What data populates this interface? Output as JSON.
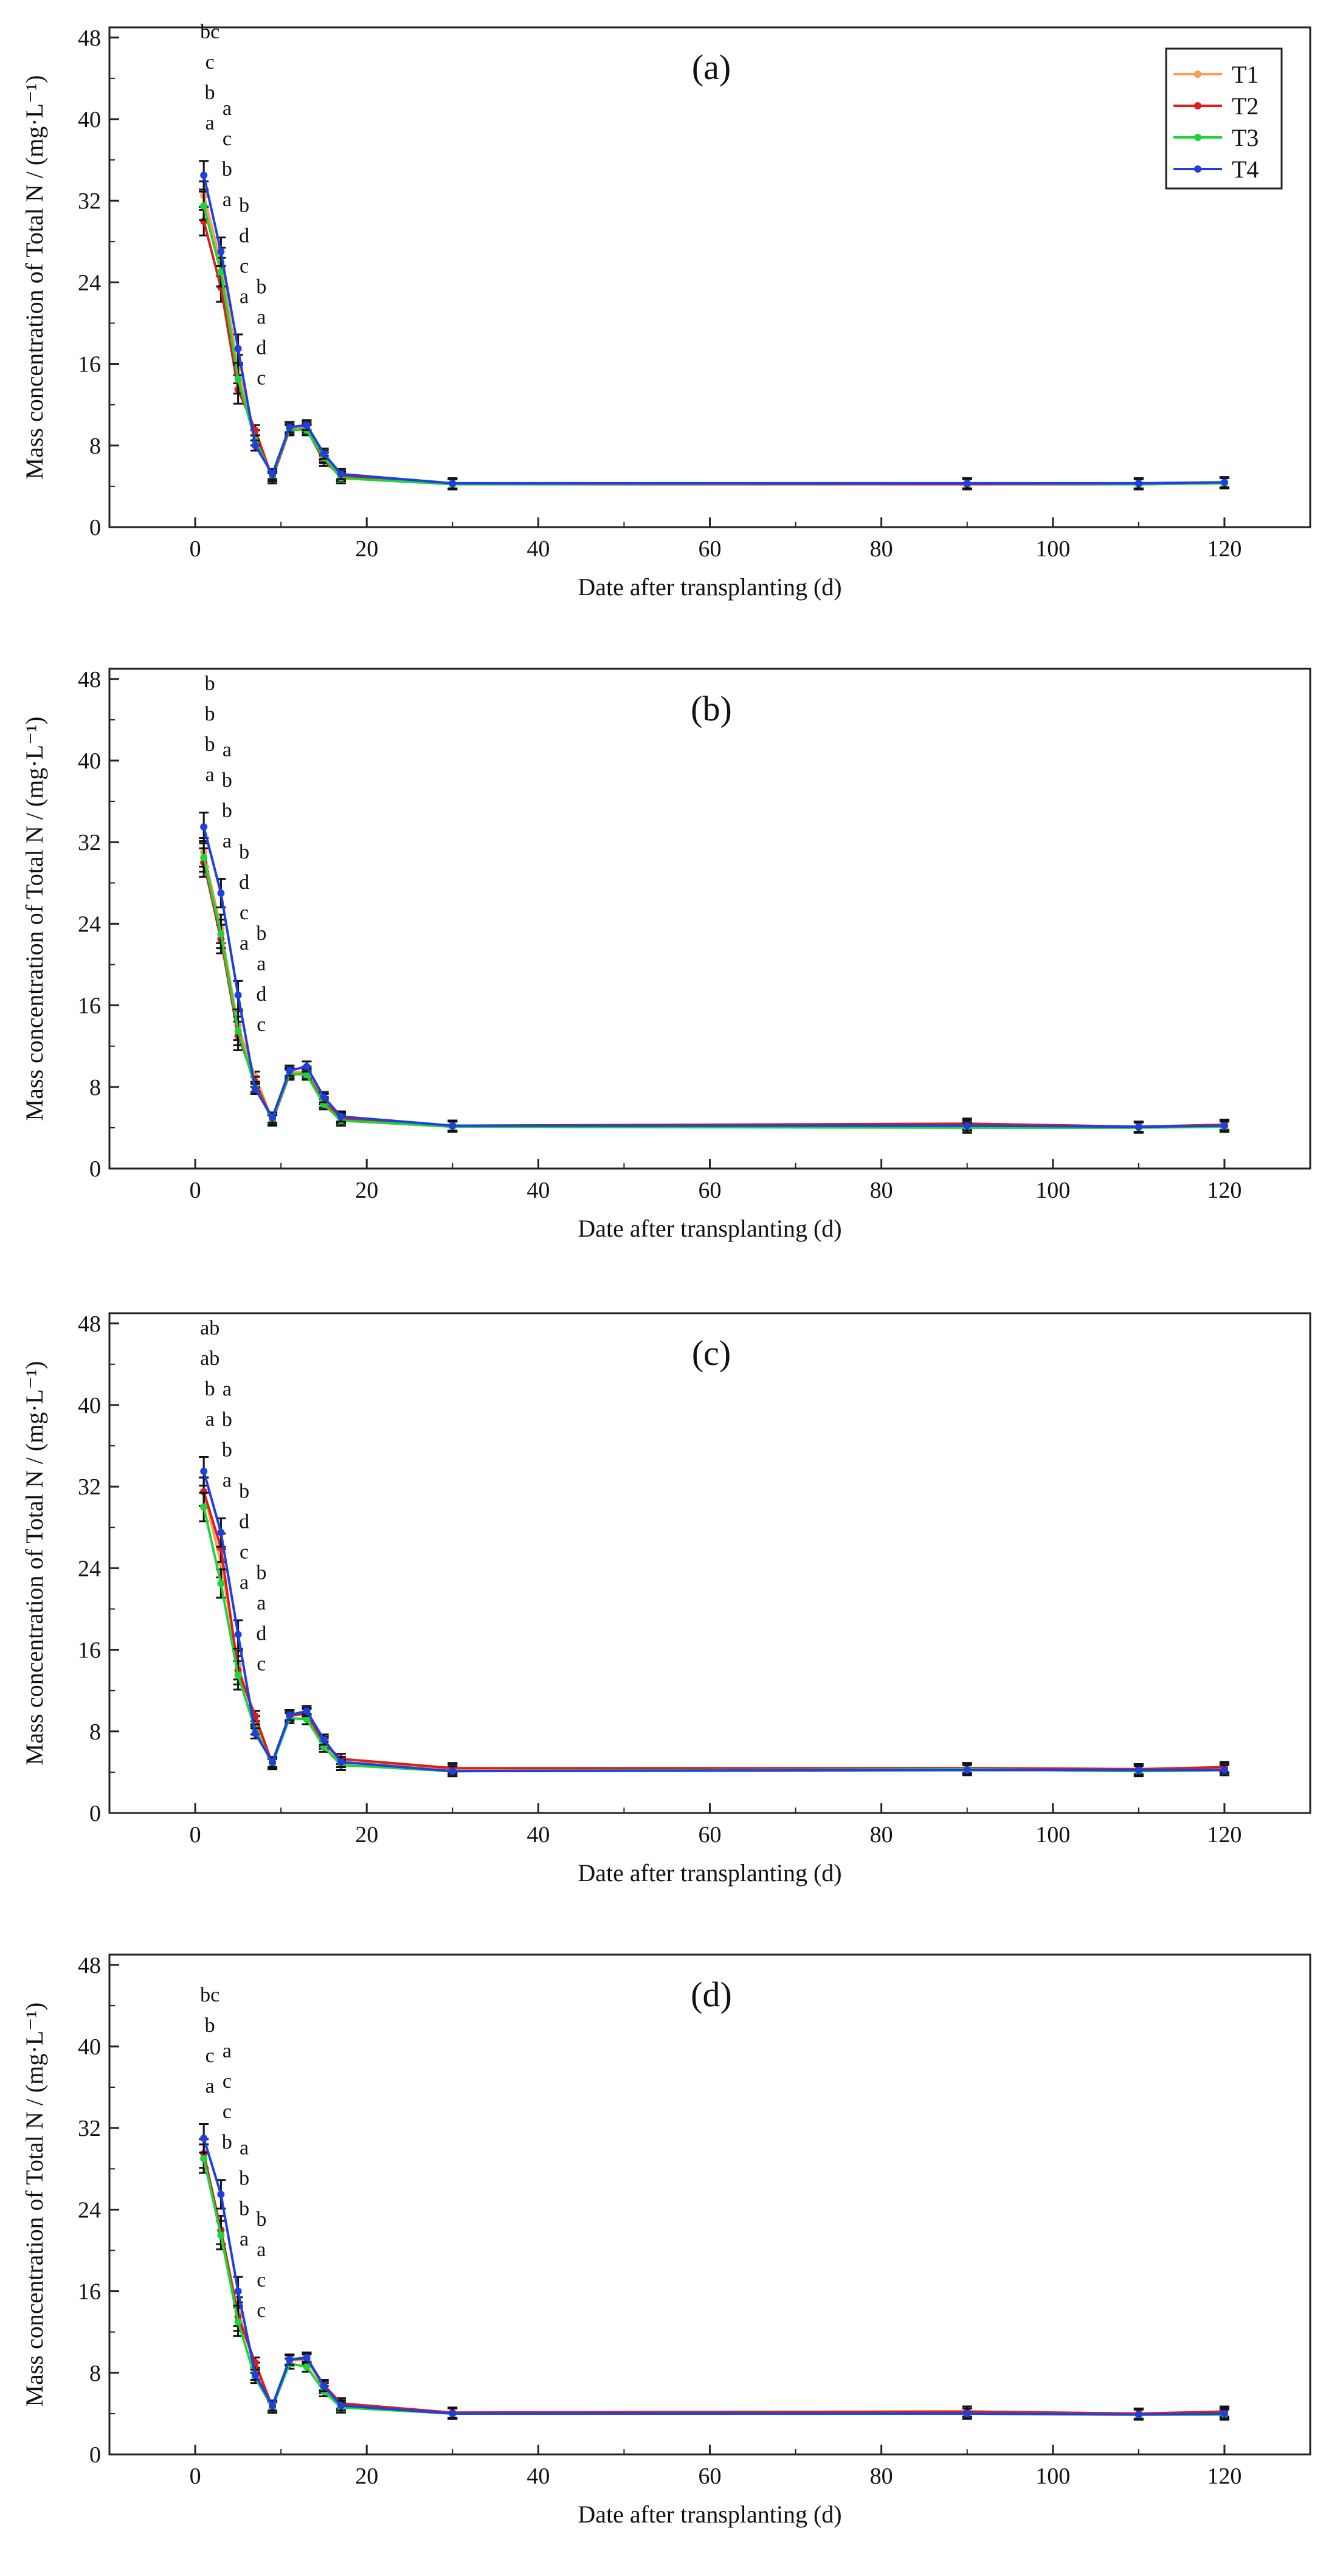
{
  "chart_data": [
    {
      "type": "line",
      "title": "(a)",
      "xlabel": "Date after transplanting (d)",
      "ylabel": "Mass concentration of Total N / (mg·L⁻¹)",
      "xlim": [
        -10,
        130
      ],
      "ylim": [
        0,
        49
      ],
      "xticks": [
        0,
        20,
        40,
        60,
        80,
        100,
        120
      ],
      "yticks": [
        0,
        8,
        16,
        24,
        32,
        40,
        48
      ],
      "legend": "top-right",
      "x": [
        1,
        3,
        5,
        7,
        9,
        11,
        13,
        15,
        17,
        30,
        90,
        110,
        120
      ],
      "series": [
        {
          "name": "T1",
          "color": "#ff9a52",
          "values": [
            32.5,
            26.0,
            15.5,
            9.0,
            4.8,
            9.8,
            9.8,
            7.0,
            5.0,
            4.2,
            4.2,
            4.2,
            4.4
          ]
        },
        {
          "name": "T2",
          "color": "#dd1c1c",
          "values": [
            30.0,
            23.5,
            13.5,
            9.5,
            4.8,
            9.5,
            9.6,
            6.5,
            5.0,
            4.2,
            4.2,
            4.2,
            4.3
          ]
        },
        {
          "name": "T3",
          "color": "#1ed43a",
          "values": [
            31.5,
            25.0,
            14.5,
            8.5,
            5.0,
            9.6,
            9.5,
            6.8,
            4.8,
            4.2,
            4.3,
            4.2,
            4.3
          ]
        },
        {
          "name": "T4",
          "color": "#1f3fe0",
          "values": [
            34.5,
            27.0,
            17.5,
            8.0,
            5.2,
            9.8,
            10.0,
            7.2,
            5.2,
            4.3,
            4.3,
            4.3,
            4.4
          ]
        }
      ],
      "significance": [
        {
          "x": 1,
          "letters": [
            "bc",
            "c",
            "b",
            "a"
          ]
        },
        {
          "x": 3,
          "letters": [
            "a",
            "c",
            "b",
            "a"
          ]
        },
        {
          "x": 5,
          "letters": [
            "b",
            "d",
            "c",
            "a"
          ]
        },
        {
          "x": 7,
          "letters": [
            "b",
            "a",
            "d",
            "c"
          ]
        }
      ]
    },
    {
      "type": "line",
      "title": "(b)",
      "xlabel": "Date after transplanting (d)",
      "ylabel": "Mass concentration of Total N / (mg·L⁻¹)",
      "xlim": [
        -10,
        130
      ],
      "ylim": [
        0,
        49
      ],
      "xticks": [
        0,
        20,
        40,
        60,
        80,
        100,
        120
      ],
      "yticks": [
        0,
        8,
        16,
        24,
        32,
        40,
        48
      ],
      "x": [
        1,
        3,
        5,
        7,
        9,
        11,
        13,
        15,
        17,
        30,
        90,
        110,
        120
      ],
      "series": [
        {
          "name": "T1",
          "color": "#ff9a52",
          "values": [
            31.0,
            23.5,
            14.0,
            9.0,
            4.8,
            9.4,
            9.5,
            6.8,
            5.0,
            4.2,
            4.3,
            4.1,
            4.2
          ]
        },
        {
          "name": "T2",
          "color": "#dd1c1c",
          "values": [
            30.0,
            22.5,
            13.0,
            8.5,
            4.7,
            9.2,
            9.3,
            6.5,
            4.9,
            4.2,
            4.4,
            4.1,
            4.3
          ]
        },
        {
          "name": "T3",
          "color": "#1ed43a",
          "values": [
            30.5,
            23.0,
            13.5,
            8.0,
            4.8,
            9.3,
            9.2,
            6.3,
            4.7,
            4.1,
            4.0,
            4.0,
            4.1
          ]
        },
        {
          "name": "T4",
          "color": "#1f3fe0",
          "values": [
            33.5,
            27.0,
            17.0,
            7.8,
            5.0,
            9.6,
            10.0,
            7.0,
            5.1,
            4.2,
            4.2,
            4.1,
            4.2
          ]
        }
      ],
      "significance": [
        {
          "x": 1,
          "letters": [
            "b",
            "b",
            "b",
            "a"
          ]
        },
        {
          "x": 3,
          "letters": [
            "a",
            "b",
            "b",
            "a"
          ]
        },
        {
          "x": 5,
          "letters": [
            "b",
            "d",
            "c",
            "a"
          ]
        },
        {
          "x": 7,
          "letters": [
            "b",
            "a",
            "d",
            "c"
          ]
        }
      ]
    },
    {
      "type": "line",
      "title": "(c)",
      "xlabel": "Date after transplanting (d)",
      "ylabel": "Mass concentration of Total N / (mg·L⁻¹)",
      "xlim": [
        -10,
        130
      ],
      "ylim": [
        0,
        49
      ],
      "xticks": [
        0,
        20,
        40,
        60,
        80,
        100,
        120
      ],
      "yticks": [
        0,
        8,
        16,
        24,
        32,
        40,
        48
      ],
      "x": [
        1,
        3,
        5,
        7,
        9,
        11,
        13,
        15,
        17,
        30,
        90,
        110,
        120
      ],
      "series": [
        {
          "name": "T1",
          "color": "#ff9a52",
          "values": [
            31.5,
            24.5,
            14.5,
            9.0,
            4.9,
            9.6,
            9.7,
            7.0,
            5.0,
            4.3,
            4.4,
            4.3,
            4.4
          ]
        },
        {
          "name": "T2",
          "color": "#dd1c1c",
          "values": [
            31.5,
            26.0,
            14.0,
            9.5,
            4.8,
            9.5,
            9.8,
            6.8,
            5.3,
            4.4,
            4.4,
            4.3,
            4.5
          ]
        },
        {
          "name": "T3",
          "color": "#1ed43a",
          "values": [
            30.0,
            22.5,
            13.5,
            8.2,
            4.8,
            9.3,
            9.2,
            6.5,
            4.7,
            4.1,
            4.3,
            4.1,
            4.2
          ]
        },
        {
          "name": "T4",
          "color": "#1f3fe0",
          "values": [
            33.5,
            27.5,
            17.5,
            7.8,
            5.0,
            9.6,
            10.0,
            7.2,
            5.0,
            4.1,
            4.2,
            4.2,
            4.2
          ]
        }
      ],
      "significance": [
        {
          "x": 1,
          "letters": [
            "ab",
            "ab",
            "b",
            "a"
          ]
        },
        {
          "x": 3,
          "letters": [
            "a",
            "b",
            "b",
            "a"
          ]
        },
        {
          "x": 5,
          "letters": [
            "b",
            "d",
            "c",
            "a"
          ]
        },
        {
          "x": 7,
          "letters": [
            "b",
            "a",
            "d",
            "c"
          ]
        }
      ]
    },
    {
      "type": "line",
      "title": "(d)",
      "xlabel": "Date after transplanting (d)",
      "ylabel": "Mass concentration of Total N / (mg·L⁻¹)",
      "xlim": [
        -10,
        130
      ],
      "ylim": [
        0,
        49
      ],
      "xticks": [
        0,
        20,
        40,
        60,
        80,
        100,
        120
      ],
      "yticks": [
        0,
        8,
        16,
        24,
        32,
        40,
        48
      ],
      "x": [
        1,
        3,
        5,
        7,
        9,
        11,
        13,
        15,
        17,
        30,
        90,
        110,
        120
      ],
      "series": [
        {
          "name": "T1",
          "color": "#ff9a52",
          "values": [
            29.0,
            22.0,
            14.0,
            8.5,
            4.6,
            9.2,
            9.3,
            6.5,
            5.0,
            4.0,
            4.2,
            4.0,
            4.1
          ]
        },
        {
          "name": "T2",
          "color": "#dd1c1c",
          "values": [
            29.5,
            22.0,
            13.5,
            9.0,
            4.6,
            9.3,
            9.4,
            6.8,
            5.0,
            4.1,
            4.2,
            4.0,
            4.2
          ]
        },
        {
          "name": "T3",
          "color": "#1ed43a",
          "values": [
            29.0,
            21.5,
            13.0,
            7.5,
            4.6,
            8.9,
            8.6,
            6.2,
            4.6,
            4.0,
            4.0,
            3.9,
            3.9
          ]
        },
        {
          "name": "T4",
          "color": "#1f3fe0",
          "values": [
            31.0,
            25.5,
            16.0,
            7.8,
            4.8,
            9.3,
            9.5,
            6.7,
            4.8,
            4.0,
            4.0,
            3.9,
            4.0
          ]
        }
      ],
      "significance": [
        {
          "x": 1,
          "letters": [
            "bc",
            "b",
            "c",
            "a"
          ]
        },
        {
          "x": 3,
          "letters": [
            "a",
            "c",
            "c",
            "b"
          ]
        },
        {
          "x": 5,
          "letters": [
            "a",
            "b",
            "b",
            "a"
          ]
        },
        {
          "x": 7,
          "letters": [
            "b",
            "a",
            "c",
            "c"
          ]
        }
      ]
    }
  ]
}
